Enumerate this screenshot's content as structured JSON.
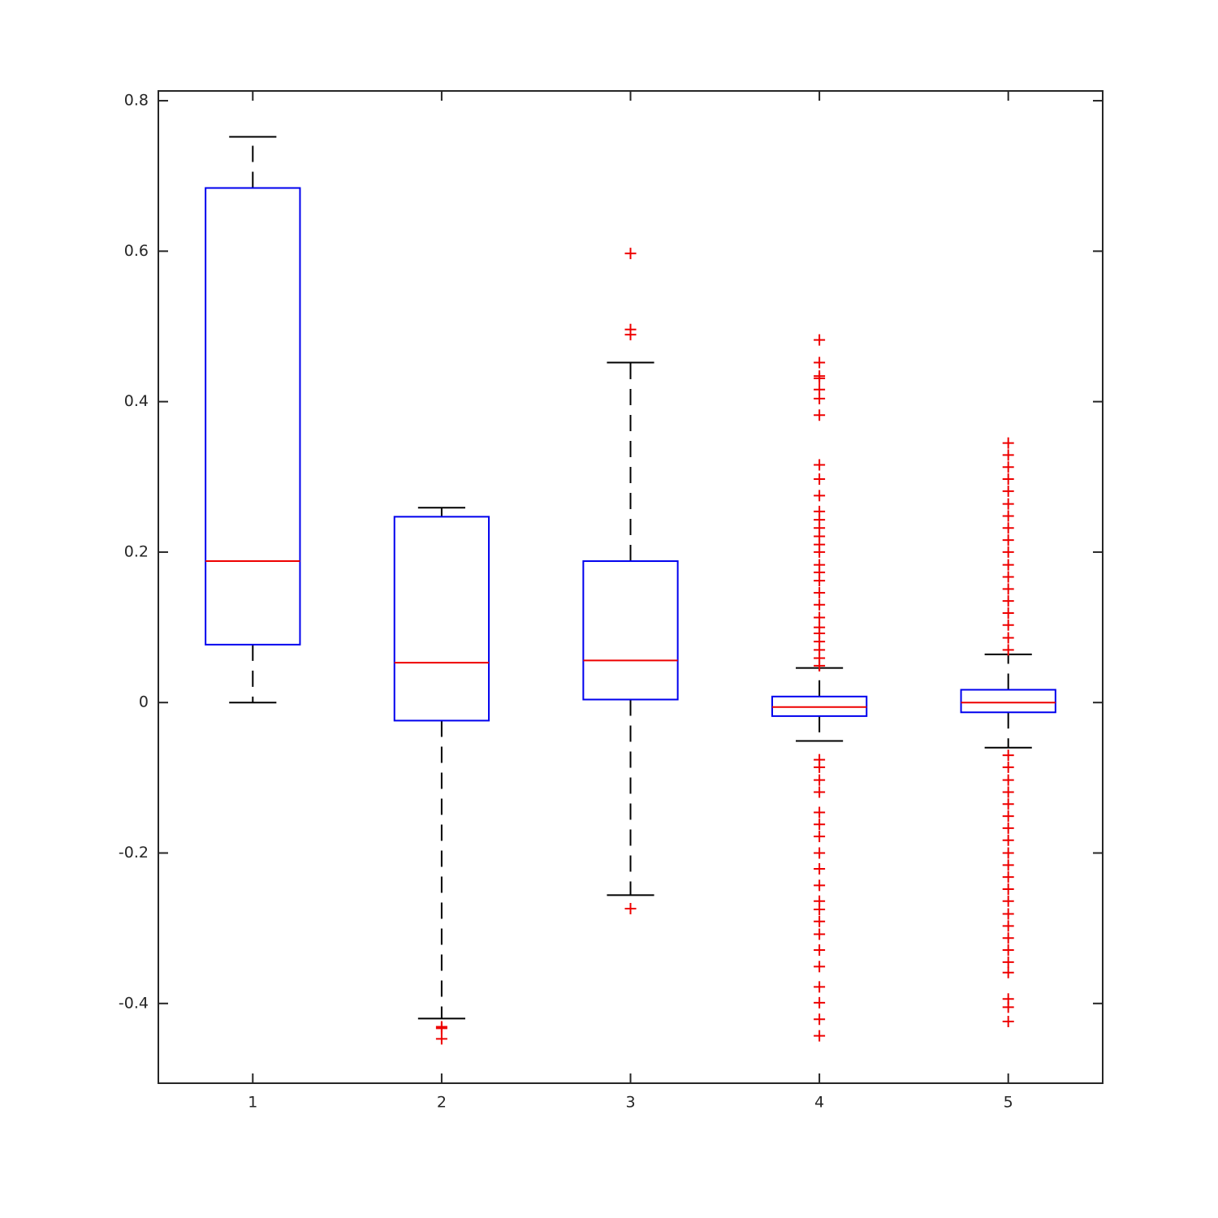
{
  "chart_data": {
    "type": "box",
    "categories": [
      "1",
      "2",
      "3",
      "4",
      "5"
    ],
    "xlim": [
      0.5,
      5.5
    ],
    "ylim": [
      -0.506,
      0.813
    ],
    "yticks": [
      -0.4,
      -0.2,
      0,
      0.2,
      0.4,
      0.6,
      0.8
    ],
    "box_color": "#0000ee",
    "median_color": "#ee0000",
    "whisker_color": "#000000",
    "outlier_color": "#ee0000",
    "boxes": [
      {
        "whisker_low": 0,
        "q1": 0.077,
        "median": 0.188,
        "q3": 0.684,
        "whisker_high": 0.752,
        "outliers": []
      },
      {
        "whisker_low": -0.42,
        "q1": -0.024,
        "median": 0.053,
        "q3": 0.247,
        "whisker_high": 0.259,
        "outliers": [
          -0.431,
          -0.433,
          -0.447
        ]
      },
      {
        "whisker_low": -0.256,
        "q1": 0.004,
        "median": 0.056,
        "q3": 0.188,
        "whisker_high": 0.452,
        "outliers": [
          0.597,
          0.496,
          0.489,
          -0.274
        ]
      },
      {
        "whisker_low": -0.051,
        "q1": -0.018,
        "median": -0.006,
        "q3": 0.008,
        "whisker_high": 0.046,
        "outliers": [
          0.482,
          0.452,
          0.434,
          0.431,
          0.416,
          0.404,
          0.382,
          0.316,
          0.297,
          0.275,
          0.254,
          0.243,
          0.232,
          0.221,
          0.21,
          0.2,
          0.183,
          0.173,
          0.162,
          0.146,
          0.13,
          0.113,
          0.1,
          0.092,
          0.081,
          0.07,
          0.059,
          0.049,
          -0.076,
          -0.086,
          -0.103,
          -0.119,
          -0.146,
          -0.162,
          -0.178,
          -0.2,
          -0.221,
          -0.243,
          -0.264,
          -0.275,
          -0.291,
          -0.308,
          -0.329,
          -0.351,
          -0.378,
          -0.399,
          -0.421,
          -0.443
        ]
      },
      {
        "whisker_low": -0.06,
        "q1": -0.013,
        "median": 0,
        "q3": 0.017,
        "whisker_high": 0.064,
        "outliers": [
          0.345,
          0.329,
          0.313,
          0.297,
          0.281,
          0.264,
          0.248,
          0.232,
          0.216,
          0.2,
          0.183,
          0.167,
          0.151,
          0.135,
          0.119,
          0.103,
          0.086,
          0.07,
          -0.07,
          -0.086,
          -0.103,
          -0.119,
          -0.135,
          -0.151,
          -0.167,
          -0.183,
          -0.2,
          -0.216,
          -0.232,
          -0.248,
          -0.264,
          -0.281,
          -0.297,
          -0.313,
          -0.329,
          -0.345,
          -0.359,
          -0.394,
          -0.405,
          -0.424
        ]
      }
    ]
  }
}
